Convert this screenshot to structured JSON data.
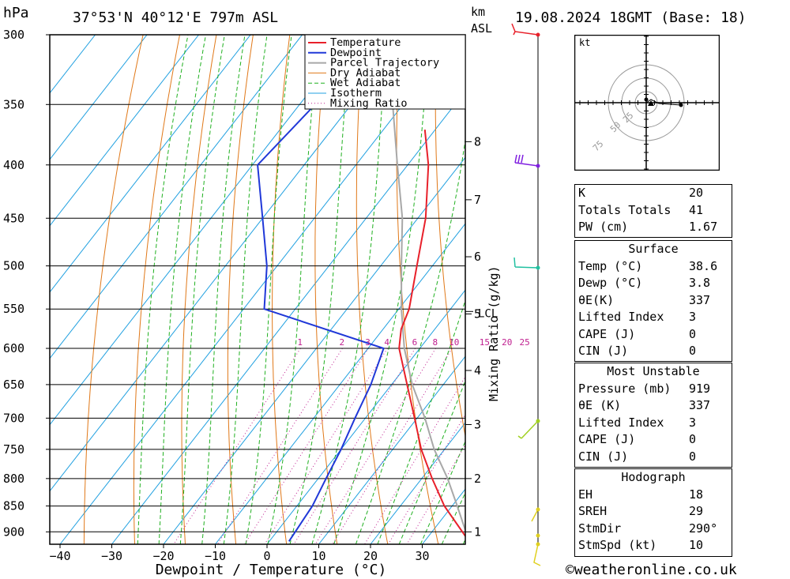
{
  "header": {
    "pressure_unit": "hPa",
    "location": "37°53'N  40°12'E  797m  ASL",
    "height_unit_top": "km",
    "height_unit_bottom": "ASL",
    "datetime": "19.08.2024  18GMT  (Base: 18)"
  },
  "chart_data": {
    "type": "line",
    "title": "37°53'N  40°12'E  797m  ASL",
    "xlabel": "Dewpoint / Temperature (°C)",
    "ylabel": "hPa",
    "right_axis_label": "Mixing Ratio (g/kg)",
    "x_ticks": [
      -40,
      -30,
      -20,
      -10,
      0,
      10,
      20,
      30
    ],
    "pressure_levels": [
      300,
      350,
      400,
      450,
      500,
      550,
      600,
      650,
      700,
      750,
      800,
      850,
      900
    ],
    "height_ticks_km": [
      1,
      2,
      3,
      4,
      5,
      6,
      7,
      8
    ],
    "lcl_label": "LCL",
    "mixing_ratio_labels": [
      "1",
      "2",
      "3",
      "4",
      "6",
      "8",
      "10",
      "15",
      "20",
      "25"
    ],
    "legend": [
      "Temperature",
      "Dewpoint",
      "Parcel Trajectory",
      "Dry Adiabat",
      "Wet Adiabat",
      "Isotherm",
      "Mixing Ratio"
    ],
    "legend_position": "top-center",
    "series": [
      {
        "name": "Temperature",
        "color": "#e8202a",
        "points": [
          [
            919,
            38.6
          ],
          [
            850,
            28.5
          ],
          [
            800,
            22
          ],
          [
            750,
            15.5
          ],
          [
            700,
            9.5
          ],
          [
            650,
            3
          ],
          [
            600,
            -4
          ],
          [
            575,
            -6.5
          ],
          [
            550,
            -8
          ],
          [
            500,
            -13
          ],
          [
            450,
            -18.5
          ],
          [
            400,
            -26
          ],
          [
            370,
            -32
          ]
        ]
      },
      {
        "name": "Dewpoint",
        "color": "#2038d8",
        "points": [
          [
            919,
            3.8
          ],
          [
            850,
            3
          ],
          [
            800,
            1.5
          ],
          [
            750,
            0
          ],
          [
            700,
            -2
          ],
          [
            650,
            -4
          ],
          [
            600,
            -7
          ],
          [
            550,
            -36
          ],
          [
            500,
            -42
          ],
          [
            450,
            -50
          ],
          [
            400,
            -59
          ],
          [
            350,
            -57
          ],
          [
            300,
            -64
          ]
        ]
      },
      {
        "name": "Parcel Trajectory",
        "color": "#a8a8a8",
        "points": [
          [
            919,
            38.6
          ],
          [
            850,
            31
          ],
          [
            800,
            25
          ],
          [
            750,
            18
          ],
          [
            700,
            11.5
          ],
          [
            650,
            4
          ],
          [
            600,
            -3
          ],
          [
            550,
            -9.5
          ],
          [
            500,
            -16
          ],
          [
            450,
            -23
          ],
          [
            400,
            -32
          ],
          [
            350,
            -42
          ],
          [
            315,
            -49
          ]
        ]
      }
    ],
    "isotherms_step": 10,
    "grid": true
  },
  "hodograph": {
    "unit": "kt",
    "ring_labels": [
      "25",
      "50",
      "75"
    ]
  },
  "stats": {
    "group1": [
      {
        "k": "K",
        "v": "20"
      },
      {
        "k": "Totals Totals",
        "v": "41"
      },
      {
        "k": "PW (cm)",
        "v": "1.67"
      }
    ],
    "surface": {
      "title": "Surface",
      "rows": [
        {
          "k": "Temp (°C)",
          "v": "38.6"
        },
        {
          "k": "Dewp (°C)",
          "v": "3.8"
        },
        {
          "k": "θE(K)",
          "v": "337"
        },
        {
          "k": "Lifted Index",
          "v": "3"
        },
        {
          "k": "CAPE (J)",
          "v": "0"
        },
        {
          "k": "CIN (J)",
          "v": "0"
        }
      ]
    },
    "most_unstable": {
      "title": "Most Unstable",
      "rows": [
        {
          "k": "Pressure (mb)",
          "v": "919"
        },
        {
          "k": "θE (K)",
          "v": "337"
        },
        {
          "k": "Lifted Index",
          "v": "3"
        },
        {
          "k": "CAPE (J)",
          "v": "0"
        },
        {
          "k": "CIN (J)",
          "v": "0"
        }
      ]
    },
    "hodograph": {
      "title": "Hodograph",
      "rows": [
        {
          "k": "EH",
          "v": "18"
        },
        {
          "k": "SREH",
          "v": "29"
        },
        {
          "k": "StmDir",
          "v": "290°"
        },
        {
          "k": "StmSpd (kt)",
          "v": "10"
        }
      ]
    }
  },
  "footer": {
    "copyright_symbol": "©",
    "site": "weatheronline.co.uk"
  },
  "colors": {
    "temperature": "#e8202a",
    "dewpoint": "#2038d8",
    "parcel": "#a8a8a8",
    "dry_adiabat": "#e07818",
    "wet_adiabat": "#20b020",
    "isotherm": "#20a0e0",
    "mixing_ratio": "#c02090"
  }
}
